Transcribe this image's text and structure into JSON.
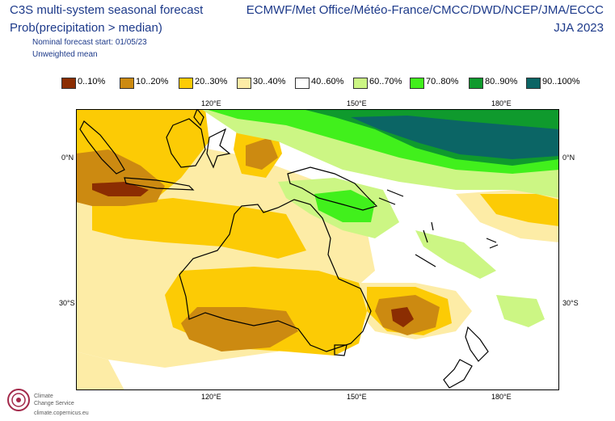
{
  "header": {
    "title": "C3S multi-system seasonal forecast",
    "subtitle": "Prob(precipitation > median)",
    "start": "Nominal forecast start: 01/05/23",
    "mean": "Unweighted mean",
    "centres": "ECMWF/Met Office/Météo-France/CMCC/DWD/NCEP/JMA/ECCC",
    "season": "JJA 2023"
  },
  "legend": [
    {
      "label": "0..10%",
      "color": "#8b2d02"
    },
    {
      "label": "10..20%",
      "color": "#cc8a11"
    },
    {
      "label": "20..30%",
      "color": "#fccb05"
    },
    {
      "label": "30..40%",
      "color": "#fdeca6"
    },
    {
      "label": "40..60%",
      "color": "#ffffff"
    },
    {
      "label": "60..70%",
      "color": "#ccf684"
    },
    {
      "label": "70..80%",
      "color": "#41f01c"
    },
    {
      "label": "80..90%",
      "color": "#0f9a2d"
    },
    {
      "label": "90..100%",
      "color": "#0b6565"
    }
  ],
  "axes": {
    "top_lon": [
      "120°E",
      "150°E",
      "180°E"
    ],
    "bottom_lon": [
      "120°E",
      "150°E",
      "180°E"
    ],
    "left_lat": [
      "0°N",
      "30°S"
    ],
    "right_lat": [
      "0°N",
      "30°S"
    ]
  },
  "logo": {
    "line1": "Climate",
    "line2": "Change Service",
    "url": "climate.copernicus.eu"
  }
}
